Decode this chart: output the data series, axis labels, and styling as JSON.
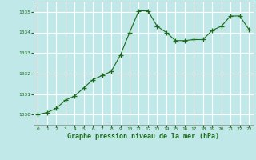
{
  "x": [
    0,
    1,
    2,
    3,
    4,
    5,
    6,
    7,
    8,
    9,
    10,
    11,
    12,
    13,
    14,
    15,
    16,
    17,
    18,
    19,
    20,
    21,
    22,
    23
  ],
  "y": [
    1030.0,
    1030.1,
    1030.3,
    1030.7,
    1030.9,
    1031.3,
    1031.7,
    1031.9,
    1032.1,
    1032.9,
    1034.0,
    1035.05,
    1035.05,
    1034.3,
    1034.0,
    1033.6,
    1033.6,
    1033.65,
    1033.65,
    1034.1,
    1034.3,
    1034.8,
    1034.8,
    1034.15
  ],
  "ylim": [
    1029.5,
    1035.5
  ],
  "yticks": [
    1030,
    1031,
    1032,
    1033,
    1034,
    1035
  ],
  "xticks": [
    0,
    1,
    2,
    3,
    4,
    5,
    6,
    7,
    8,
    9,
    10,
    11,
    12,
    13,
    14,
    15,
    16,
    17,
    18,
    19,
    20,
    21,
    22,
    23
  ],
  "line_color": "#1a6b1a",
  "marker": "+",
  "marker_color": "#1a6b1a",
  "bg_color": "#c0e8e8",
  "grid_color": "#ffffff",
  "xlabel": "Graphe pression niveau de la mer (hPa)",
  "xlabel_color": "#1a6b1a",
  "tick_color": "#1a6b1a"
}
